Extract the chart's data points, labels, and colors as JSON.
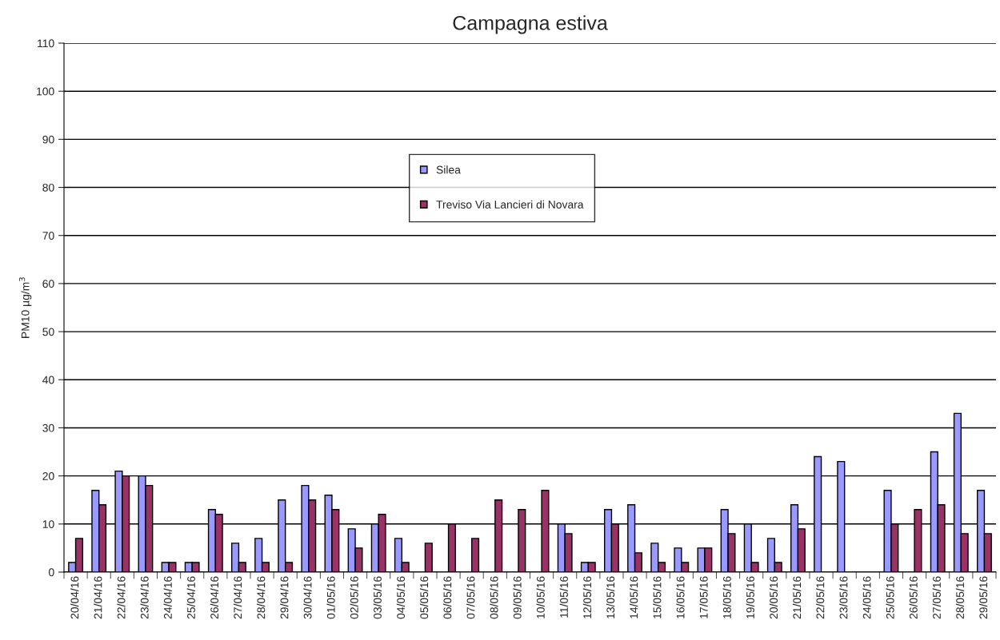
{
  "chart_data": {
    "type": "bar",
    "title": "Campagna estiva",
    "ylabel": "PM10 µg/m$^{3}$",
    "categories": [
      "20/04/16",
      "21/04/16",
      "22/04/16",
      "23/04/16",
      "24/04/16",
      "25/04/16",
      "26/04/16",
      "27/04/16",
      "28/04/16",
      "29/04/16",
      "30/04/16",
      "01/05/16",
      "02/05/16",
      "03/05/16",
      "04/05/16",
      "05/05/16",
      "06/05/16",
      "07/05/16",
      "08/05/16",
      "09/05/16",
      "10/05/16",
      "11/05/16",
      "12/05/16",
      "13/05/16",
      "14/05/16",
      "15/05/16",
      "16/05/16",
      "17/05/16",
      "18/05/16",
      "19/05/16",
      "20/05/16",
      "21/05/16",
      "22/05/16",
      "23/05/16",
      "24/05/16",
      "25/05/16",
      "26/05/16",
      "27/05/16",
      "28/05/16",
      "29/05/16"
    ],
    "series": [
      {
        "name": "Silea",
        "color": "#9999ff",
        "values": [
          2,
          17,
          21,
          20,
          2,
          2,
          13,
          6,
          7,
          15,
          18,
          16,
          9,
          10,
          7,
          null,
          null,
          null,
          null,
          null,
          null,
          10,
          2,
          13,
          14,
          6,
          5,
          5,
          13,
          10,
          7,
          14,
          24,
          23,
          null,
          17,
          null,
          25,
          33,
          17
        ]
      },
      {
        "name": "Treviso Via Lancieri di Novara",
        "color": "#993366",
        "values": [
          7,
          14,
          20,
          18,
          2,
          2,
          12,
          2,
          2,
          2,
          15,
          13,
          5,
          12,
          2,
          6,
          10,
          7,
          15,
          13,
          17,
          8,
          2,
          10,
          4,
          2,
          2,
          5,
          8,
          2,
          2,
          9,
          null,
          null,
          null,
          10,
          13,
          14,
          8,
          8
        ]
      }
    ],
    "ylim": [
      0,
      110
    ],
    "yticks": [
      0,
      10,
      20,
      30,
      40,
      50,
      60,
      70,
      80,
      90,
      100,
      110
    ],
    "grid": "y",
    "legend": "top"
  }
}
